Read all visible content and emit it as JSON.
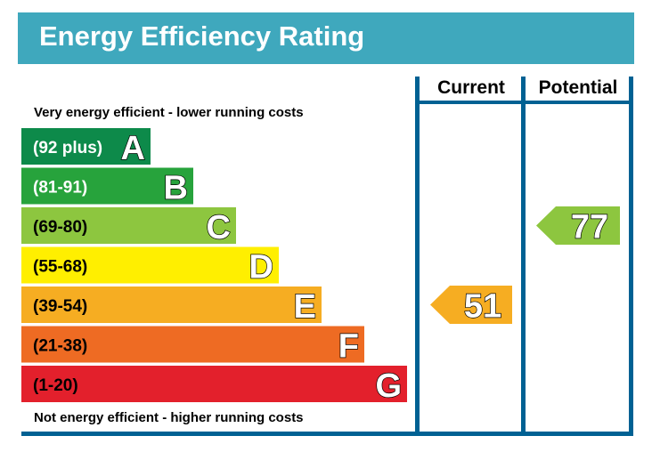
{
  "title": "Energy Efficiency Rating",
  "top_caption": "Very energy efficient - lower running costs",
  "bottom_caption": "Not energy efficient - higher running costs",
  "columns": {
    "current": "Current",
    "potential": "Potential"
  },
  "chart_data": {
    "type": "bar",
    "bands": [
      {
        "range": "(92 plus)",
        "letter": "A",
        "color": "#0d8a4a"
      },
      {
        "range": "(81-91)",
        "letter": "B",
        "color": "#27a33c"
      },
      {
        "range": "(69-80)",
        "letter": "C",
        "color": "#8dc63f"
      },
      {
        "range": "(55-68)",
        "letter": "D",
        "color": "#ffef00"
      },
      {
        "range": "(39-54)",
        "letter": "E",
        "color": "#f6ad22"
      },
      {
        "range": "(21-38)",
        "letter": "F",
        "color": "#ee6b23"
      },
      {
        "range": "(1-20)",
        "letter": "G",
        "color": "#e3202c"
      }
    ],
    "current": {
      "value": 51,
      "band": "E",
      "color": "#f6ad22"
    },
    "potential": {
      "value": 77,
      "band": "C",
      "color": "#8dc63f"
    }
  },
  "colors": {
    "frame": "#006193",
    "title_bar": "#3fa8bd"
  }
}
